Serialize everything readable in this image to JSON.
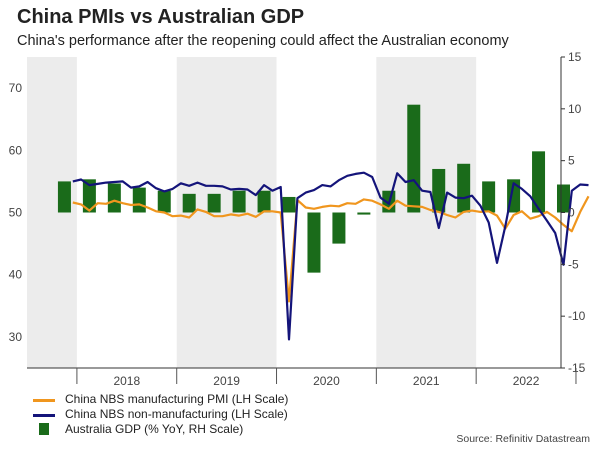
{
  "chart_data": {
    "type": "bar+line",
    "title": "China PMIs vs Australian GDP",
    "subtitle": "China's performance after the reopening could affect the Australian economy",
    "source": "Source: Refinitiv Datastream",
    "years": [
      "2018",
      "2019",
      "2020",
      "2021",
      "2022"
    ],
    "left_axis": {
      "ticks": [
        30,
        40,
        50,
        60,
        70
      ],
      "range": [
        25,
        75
      ]
    },
    "right_axis": {
      "ticks": [
        -15,
        -10,
        -5,
        0,
        5,
        10,
        15
      ],
      "range": [
        -15,
        15
      ]
    },
    "series": [
      {
        "name": "China NBS manufacturing PMI (LH Scale)",
        "type": "line",
        "axis": "left",
        "color": "#f0961e",
        "start": "2017-12",
        "step": "month",
        "values": [
          51.6,
          51.3,
          50.3,
          51.5,
          51.4,
          51.9,
          51.5,
          51.2,
          51.3,
          50.8,
          50.2,
          50.0,
          49.4,
          49.5,
          49.2,
          50.5,
          50.1,
          49.4,
          49.4,
          49.7,
          49.5,
          49.8,
          49.3,
          50.2,
          50.2,
          50.0,
          35.7,
          52.0,
          50.8,
          50.6,
          50.9,
          51.1,
          51.0,
          51.5,
          51.4,
          52.1,
          51.9,
          51.3,
          50.6,
          51.9,
          51.1,
          51.0,
          50.9,
          50.4,
          50.1,
          49.6,
          49.2,
          50.1,
          50.3,
          50.1,
          50.2,
          49.5,
          47.4,
          49.6,
          50.2,
          49.0,
          49.4,
          50.1,
          49.2,
          48.0,
          47.0,
          50.1,
          52.6
        ]
      },
      {
        "name": "China NBS non-manufacturing (LH Scale)",
        "type": "line",
        "axis": "left",
        "color": "#14147a",
        "start": "2017-12",
        "step": "month",
        "values": [
          55.0,
          55.3,
          54.4,
          54.6,
          54.8,
          54.9,
          55.0,
          54.0,
          54.2,
          54.9,
          53.9,
          53.4,
          53.8,
          54.7,
          54.3,
          54.8,
          54.3,
          54.3,
          54.2,
          53.7,
          53.8,
          53.7,
          52.8,
          54.4,
          53.5,
          54.1,
          29.6,
          52.3,
          53.2,
          53.6,
          54.4,
          54.2,
          55.2,
          55.9,
          56.2,
          56.4,
          55.7,
          52.4,
          51.4,
          56.3,
          54.9,
          55.2,
          53.5,
          53.3,
          47.5,
          53.2,
          52.4,
          52.3,
          52.7,
          51.1,
          48.4,
          41.9,
          47.8,
          54.7,
          53.8,
          52.6,
          50.6,
          48.7,
          46.7,
          41.6,
          53.5,
          54.5,
          54.4
        ]
      },
      {
        "name": "Australia GDP (% YoY, RH Scale)",
        "type": "bar",
        "axis": "right",
        "color": "#1a6b1a",
        "start": "2017-Q4",
        "step": "quarter",
        "values": [
          3.0,
          3.2,
          2.8,
          2.4,
          2.1,
          1.8,
          1.8,
          2.1,
          2.1,
          1.5,
          -5.8,
          -3.0,
          -0.2,
          2.1,
          10.4,
          4.2,
          4.7,
          3.0,
          3.2,
          5.9,
          2.7
        ]
      }
    ]
  }
}
